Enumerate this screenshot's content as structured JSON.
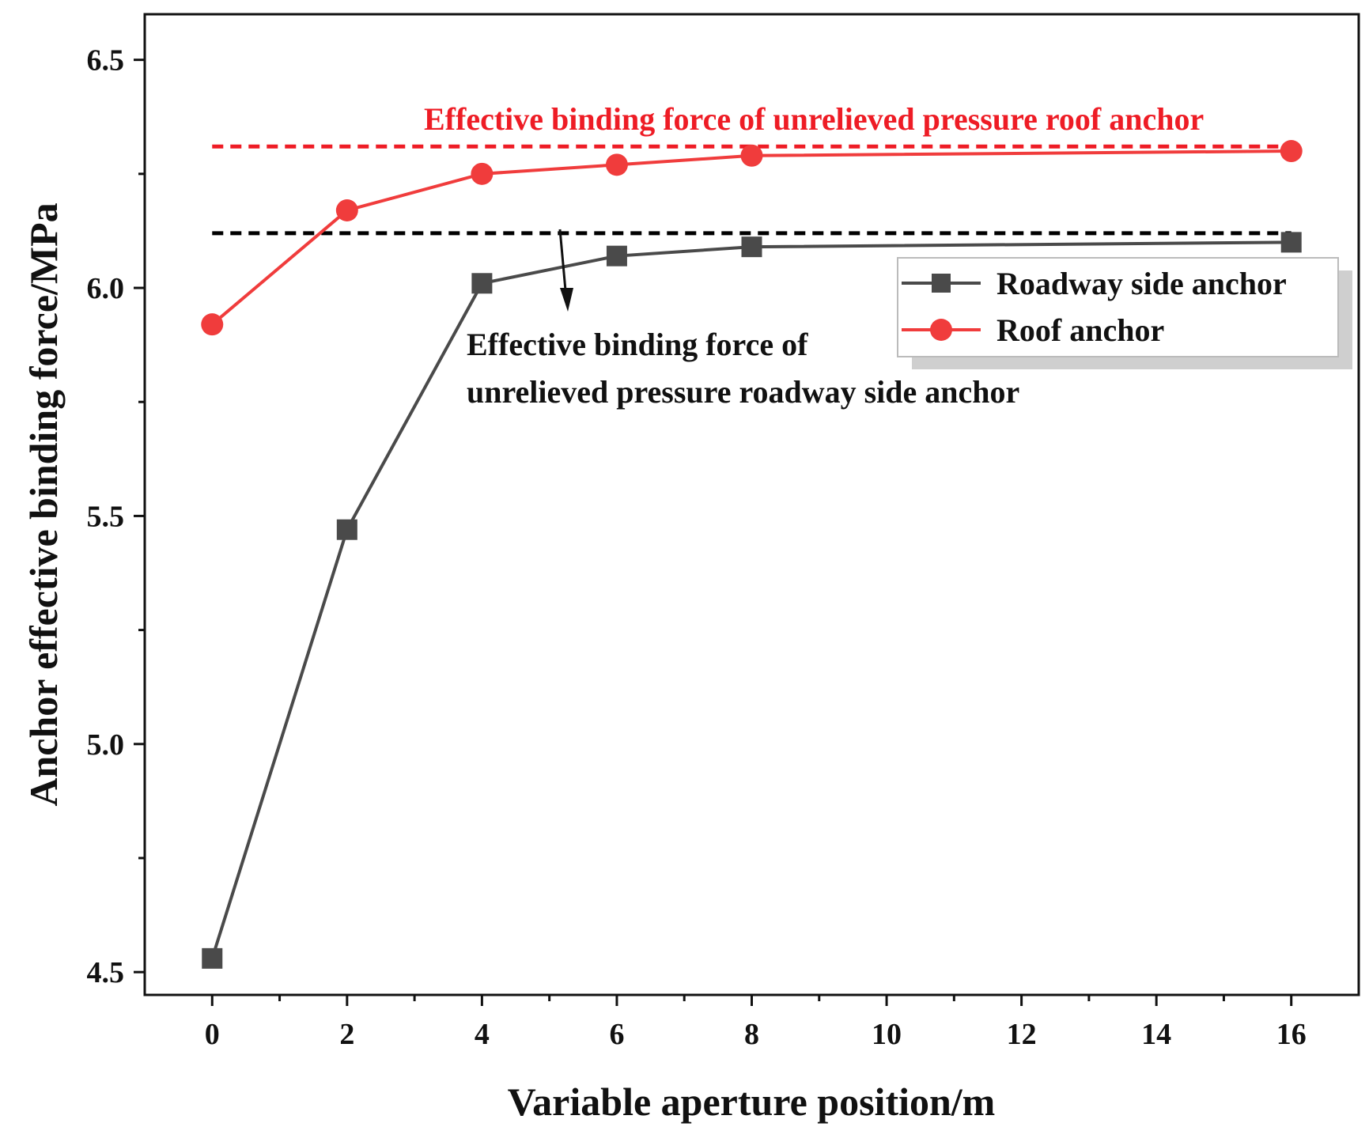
{
  "chart_data": {
    "type": "line",
    "xlabel": "Variable aperture position/m",
    "ylabel": "Anchor effective binding force/MPa",
    "x_ticks": [
      0,
      2,
      4,
      6,
      8,
      10,
      12,
      14,
      16
    ],
    "y_ticks": [
      4.5,
      5.0,
      5.5,
      6.0,
      6.5
    ],
    "y_tick_labels": [
      "4.5",
      "5.0",
      "5.5",
      "6.0",
      "6.5"
    ],
    "xlim": [
      -1,
      17
    ],
    "ylim": [
      4.45,
      6.6
    ],
    "series": [
      {
        "name": "Roadway side anchor",
        "color": "#4a4a4a",
        "marker": "square",
        "x": [
          0,
          2,
          4,
          6,
          8,
          16
        ],
        "y": [
          4.53,
          5.47,
          6.01,
          6.07,
          6.09,
          6.1
        ]
      },
      {
        "name": "Roof anchor",
        "color": "#f03c3c",
        "marker": "circle",
        "x": [
          0,
          2,
          4,
          6,
          8,
          16
        ],
        "y": [
          5.92,
          6.17,
          6.25,
          6.27,
          6.29,
          6.3
        ]
      }
    ],
    "reference_lines": [
      {
        "name": "roof-reference-line",
        "value": 6.31,
        "x_range": [
          0,
          16
        ],
        "color": "#ee1c25",
        "label": "Effective binding force of unrelieved pressure roof anchor"
      },
      {
        "name": "side-reference-line",
        "value": 6.12,
        "x_range": [
          0,
          16
        ],
        "color": "#000000",
        "label_lines": [
          "Effective binding force of",
          "unrelieved pressure roadway side anchor"
        ]
      }
    ],
    "legend": {
      "position": "top-right",
      "entries": [
        "Roadway side anchor",
        "Roof anchor"
      ]
    }
  }
}
